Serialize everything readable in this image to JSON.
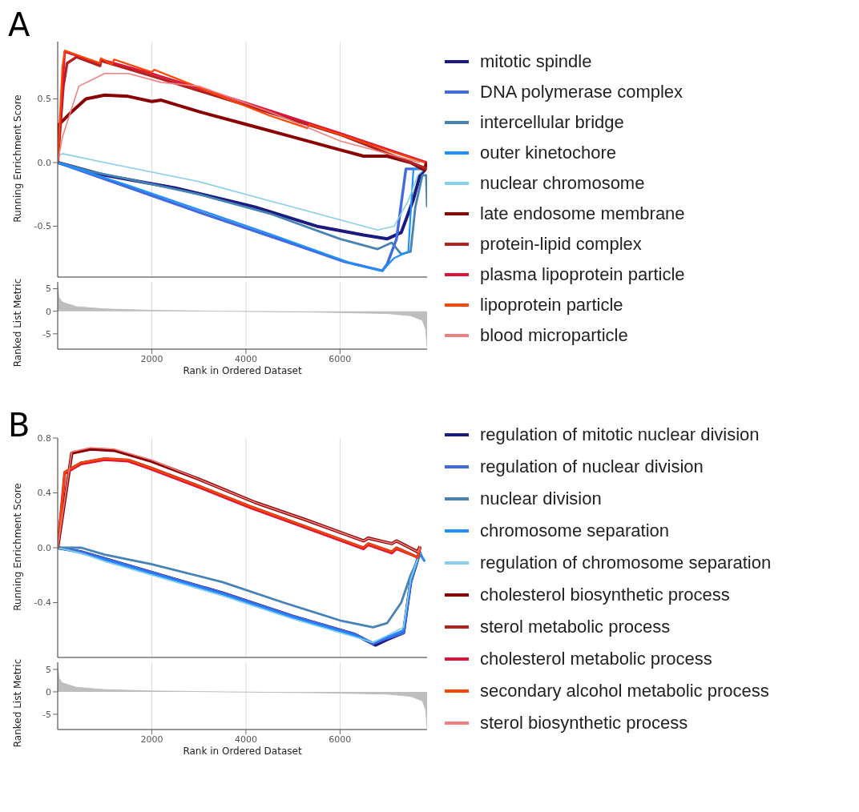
{
  "chart_data": [
    {
      "type": "line",
      "title": "A",
      "ylabel": "Running Enrichment Score",
      "xlim": [
        0,
        7850
      ],
      "xticks": [
        2000,
        4000,
        6000
      ],
      "ylim": [
        -0.9,
        0.95
      ],
      "yticks": [
        {
          "value": -0.5,
          "label": "-0.5"
        },
        {
          "value": 0,
          "label": "0.0"
        },
        {
          "value": 0.5,
          "label": "0.5"
        }
      ],
      "grid": "x",
      "tick_labels": "y",
      "legend": "right",
      "series": [
        {
          "name": "mitotic spindle",
          "color": "#1a1a80",
          "x": [
            0,
            300,
            1000,
            2500,
            4200,
            5500,
            6500,
            7000,
            7300,
            7550,
            7700,
            7800
          ],
          "values": [
            0,
            -0.03,
            -0.1,
            -0.2,
            -0.35,
            -0.5,
            -0.57,
            -0.6,
            -0.55,
            -0.3,
            -0.1,
            -0.06
          ]
        },
        {
          "name": "DNA polymerase complex",
          "color": "#4169e1",
          "x": [
            0,
            1000,
            3000,
            5000,
            6100,
            6900,
            7000,
            7200,
            7400,
            7800
          ],
          "values": [
            0,
            -0.13,
            -0.39,
            -0.64,
            -0.78,
            -0.85,
            -0.8,
            -0.6,
            -0.05,
            -0.05
          ]
        },
        {
          "name": "intercellular bridge",
          "color": "#4682b4",
          "x": [
            0,
            700,
            1500,
            3000,
            4500,
            6000,
            6800,
            7100,
            7300,
            7500,
            7600,
            7750,
            7830,
            7850
          ],
          "values": [
            0,
            -0.07,
            -0.13,
            -0.25,
            -0.4,
            -0.6,
            -0.68,
            -0.63,
            -0.72,
            -0.7,
            -0.35,
            -0.1,
            -0.1,
            -0.35
          ]
        },
        {
          "name": "outer kinetochore",
          "color": "#1e90ff",
          "x": [
            0,
            1500,
            3000,
            4500,
            6300,
            6900,
            7150,
            7450,
            7560,
            7800
          ],
          "values": [
            0,
            -0.18,
            -0.37,
            -0.56,
            -0.8,
            -0.85,
            -0.75,
            -0.7,
            -0.05,
            -0.05
          ]
        },
        {
          "name": "nuclear chromosome",
          "color": "#87ceeb",
          "x": [
            0,
            100,
            1000,
            3000,
            4500,
            6000,
            6800,
            7150,
            7450,
            7650,
            7800
          ],
          "values": [
            0.05,
            0.07,
            0,
            -0.15,
            -0.3,
            -0.45,
            -0.53,
            -0.5,
            -0.3,
            -0.1,
            -0.05
          ]
        },
        {
          "name": "late endosome membrane",
          "color": "#8b0000",
          "x": [
            0,
            30,
            300,
            600,
            1000,
            1500,
            2000,
            2200,
            3000,
            4000,
            5000,
            6000,
            6500,
            7000,
            7500,
            7800,
            7830
          ],
          "values": [
            0,
            0.3,
            0.4,
            0.5,
            0.53,
            0.52,
            0.48,
            0.49,
            0.4,
            0.3,
            0.2,
            0.1,
            0.05,
            0.05,
            0,
            -0.06,
            0
          ]
        },
        {
          "name": "protein-lipid complex",
          "color": "#b22222",
          "x": [
            0,
            120,
            200,
            400,
            900,
            920,
            2000,
            4000,
            6000,
            7850
          ],
          "values": [
            0,
            0.6,
            0.78,
            0.83,
            0.76,
            0.8,
            0.68,
            0.45,
            0.22,
            -0.05
          ]
        },
        {
          "name": "plasma lipoprotein particle",
          "color": "#dc143c",
          "x": [
            0,
            120,
            150,
            900,
            920,
            2000,
            4000,
            6000,
            7850
          ],
          "values": [
            0,
            0.7,
            0.87,
            0.78,
            0.81,
            0.7,
            0.47,
            0.23,
            0
          ]
        },
        {
          "name": "lipoprotein particle",
          "color": "#ff4500",
          "x": [
            0,
            100,
            150,
            900,
            920,
            1150,
            1200,
            2000,
            2050,
            4500,
            5300,
            5350,
            7800
          ],
          "values": [
            0,
            0.75,
            0.88,
            0.78,
            0.82,
            0.77,
            0.81,
            0.71,
            0.73,
            0.37,
            0.27,
            0.3,
            0
          ]
        },
        {
          "name": "blood microparticle",
          "color": "#f08080",
          "x": [
            0,
            100,
            450,
            1000,
            1500,
            2200,
            3000,
            4500,
            6000,
            7000,
            7700
          ],
          "values": [
            0,
            0.2,
            0.6,
            0.7,
            0.7,
            0.63,
            0.6,
            0.4,
            0.17,
            0.07,
            0
          ]
        }
      ]
    },
    {
      "type": "area",
      "ylabel": "Ranked List Metric",
      "xlabel": "Rank in Ordered Dataset",
      "xlim": [
        0,
        7850
      ],
      "xticks": [
        2000,
        4000,
        6000
      ],
      "ylim": [
        -8.4,
        6.5
      ],
      "yticks": [
        -5,
        0,
        5
      ],
      "grid": "x",
      "series": [
        {
          "color": "#bebebe",
          "x": [
            0,
            30,
            100,
            400,
            1000,
            2000,
            3500,
            5500,
            7000,
            7500,
            7750,
            7820,
            7850
          ],
          "values": [
            5.5,
            3,
            2,
            1,
            0.5,
            0.2,
            0,
            -0.2,
            -0.5,
            -1,
            -2,
            -4,
            -8
          ]
        }
      ]
    },
    {
      "type": "line",
      "title": "B",
      "ylabel": "Running Enrichment Score",
      "xlim": [
        0,
        7850
      ],
      "xticks": [
        2000,
        4000,
        6000
      ],
      "ylim": [
        -0.8,
        0.8
      ],
      "yticks": [
        {
          "value": -0.4,
          "label": "-0.4"
        },
        {
          "value": 0,
          "label": "0.0"
        },
        0.4,
        0.8
      ],
      "grid": "x",
      "tick_labels": "y",
      "legend": "right",
      "series": [
        {
          "name": "regulation of mitotic nuclear division",
          "color": "#1a1a80",
          "x": [
            0,
            500,
            1000,
            2000,
            3500,
            5000,
            6300,
            6750,
            7000,
            7350,
            7500,
            7700
          ],
          "values": [
            0,
            -0.03,
            -0.08,
            -0.18,
            -0.33,
            -0.5,
            -0.63,
            -0.71,
            -0.67,
            -0.62,
            -0.25,
            -0.03
          ]
        },
        {
          "name": "regulation of nuclear division",
          "color": "#4169e1",
          "x": [
            0,
            500,
            1000,
            2000,
            3500,
            5000,
            6300,
            6700,
            7000,
            7350,
            7500,
            7700
          ],
          "values": [
            0,
            -0.03,
            -0.08,
            -0.18,
            -0.33,
            -0.5,
            -0.63,
            -0.7,
            -0.66,
            -0.62,
            -0.25,
            -0.03
          ]
        },
        {
          "name": "nuclear division",
          "color": "#4682b4",
          "x": [
            0,
            500,
            1000,
            2000,
            3500,
            4800,
            6000,
            6700,
            7000,
            7300,
            7500,
            7700,
            7800
          ],
          "values": [
            0,
            0,
            -0.05,
            -0.12,
            -0.25,
            -0.4,
            -0.53,
            -0.58,
            -0.55,
            -0.4,
            -0.2,
            -0.05,
            -0.1
          ]
        },
        {
          "name": "chromosome separation",
          "color": "#1e90ff",
          "x": [
            0,
            500,
            1000,
            2000,
            3500,
            5000,
            6300,
            6700,
            7000,
            7350,
            7500,
            7700,
            7800
          ],
          "values": [
            0,
            -0.04,
            -0.09,
            -0.19,
            -0.34,
            -0.51,
            -0.64,
            -0.69,
            -0.65,
            -0.6,
            -0.25,
            -0.03,
            -0.1
          ]
        },
        {
          "name": "regulation of chromosome separation",
          "color": "#87ceeb",
          "x": [
            0,
            500,
            1000,
            2000,
            3500,
            5000,
            6300,
            6700,
            7000,
            7350,
            7500,
            7700
          ],
          "values": [
            0,
            -0.04,
            -0.1,
            -0.2,
            -0.35,
            -0.52,
            -0.65,
            -0.69,
            -0.64,
            -0.58,
            -0.23,
            -0.03
          ]
        },
        {
          "name": "cholesterol biosynthetic process",
          "color": "#8b0000",
          "x": [
            0,
            300,
            700,
            1200,
            2000,
            3000,
            4200,
            5300,
            6100,
            6500,
            6600,
            7100,
            7200,
            7650,
            7700
          ],
          "values": [
            0,
            0.69,
            0.72,
            0.71,
            0.63,
            0.5,
            0.33,
            0.2,
            0.1,
            0.05,
            0.07,
            0.03,
            0.05,
            -0.03,
            0.01
          ]
        },
        {
          "name": "sterol metabolic process",
          "color": "#b22222",
          "x": [
            0,
            150,
            500,
            1000,
            1500,
            2000,
            3000,
            4100,
            5300,
            6500,
            6600,
            7100,
            7200,
            7650,
            7700
          ],
          "values": [
            0,
            0.55,
            0.62,
            0.65,
            0.64,
            0.58,
            0.45,
            0.3,
            0.15,
            0,
            0.03,
            -0.03,
            0,
            -0.07,
            0
          ]
        },
        {
          "name": "cholesterol metabolic process",
          "color": "#dc143c",
          "x": [
            0,
            150,
            500,
            1000,
            1500,
            2000,
            3000,
            4100,
            5300,
            6500,
            6600,
            7100,
            7200,
            7650,
            7700
          ],
          "values": [
            0,
            0.54,
            0.61,
            0.64,
            0.63,
            0.57,
            0.44,
            0.29,
            0.14,
            -0.01,
            0.02,
            -0.04,
            -0.01,
            -0.07,
            0
          ]
        },
        {
          "name": "secondary alcohol metabolic process",
          "color": "#ff4500",
          "x": [
            0,
            150,
            500,
            1000,
            1500,
            2000,
            3000,
            4100,
            5300,
            6500,
            6600,
            7100,
            7200,
            7650,
            7700
          ],
          "values": [
            0,
            0.55,
            0.62,
            0.65,
            0.64,
            0.58,
            0.45,
            0.3,
            0.15,
            0,
            0.03,
            -0.03,
            0,
            -0.07,
            0
          ]
        },
        {
          "name": "sterol biosynthetic process",
          "color": "#f08080",
          "x": [
            0,
            300,
            700,
            1200,
            2000,
            3000,
            4200,
            5300,
            6100,
            6500,
            6600,
            7100,
            7200,
            7650,
            7700
          ],
          "values": [
            0,
            0.7,
            0.73,
            0.72,
            0.64,
            0.5,
            0.33,
            0.2,
            0.1,
            0.05,
            0.07,
            0.03,
            0.05,
            -0.03,
            0.01
          ]
        }
      ]
    },
    {
      "type": "area",
      "ylabel": "Ranked List Metric",
      "xlabel": "Rank in Ordered Dataset",
      "xlim": [
        0,
        7850
      ],
      "xticks": [
        2000,
        4000,
        6000
      ],
      "ylim": [
        -8.4,
        6.6
      ],
      "yticks": [
        -5,
        0,
        5
      ],
      "grid": "x",
      "series": [
        {
          "color": "#bebebe",
          "x": [
            0,
            30,
            100,
            400,
            1000,
            2000,
            3500,
            5500,
            7000,
            7500,
            7750,
            7820,
            7850
          ],
          "values": [
            5.5,
            3,
            2,
            1,
            0.5,
            0.2,
            0,
            -0.2,
            -0.5,
            -1,
            -2,
            -4,
            -8
          ]
        }
      ]
    }
  ]
}
